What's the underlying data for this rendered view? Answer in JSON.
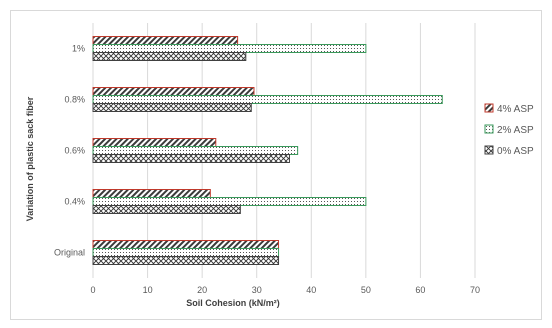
{
  "chart_data": {
    "type": "bar",
    "orientation": "horizontal",
    "categories": [
      "Original",
      "0.4%",
      "0.6%",
      "0.8%",
      "1%"
    ],
    "series": [
      {
        "name": "0% ASP",
        "values": [
          34,
          27,
          36,
          29,
          28
        ],
        "color": "#404040",
        "pattern": "crosshatch"
      },
      {
        "name": "2% ASP",
        "values": [
          34,
          50,
          37.5,
          64,
          50
        ],
        "color": "#3a9a5b",
        "pattern": "dots"
      },
      {
        "name": "4% ASP",
        "values": [
          34,
          21.5,
          22.5,
          29.5,
          26.5
        ],
        "color": "#c0392b",
        "pattern": "diagonal"
      }
    ],
    "legend_order": [
      "4% ASP",
      "2% ASP",
      "0% ASP"
    ],
    "legend_position": "right",
    "xlabel": "Soil Cohesion (kN/m²)",
    "ylabel": "Variation of plastic sack fiber",
    "xlim": [
      0,
      70
    ],
    "xticks": [
      0,
      10,
      20,
      30,
      40,
      50,
      60,
      70
    ],
    "grid": "vertical"
  }
}
